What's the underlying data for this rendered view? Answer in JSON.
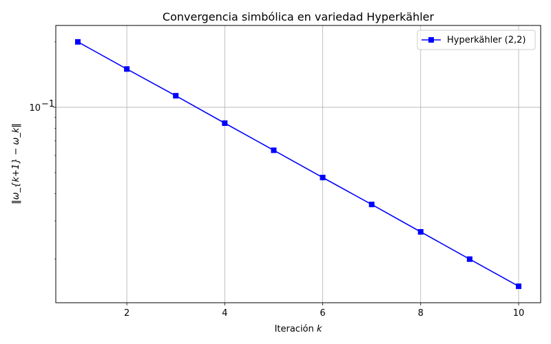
{
  "chart_data": {
    "type": "line",
    "title": "Convergencia simbólica en variedad Hyperkähler",
    "xlabel_prefix": "Iteración ",
    "xlabel_var": "k",
    "ylabel": "‖ω_{k+1} − ω_k‖",
    "x": [
      1,
      2,
      3,
      4,
      5,
      6,
      7,
      8,
      9,
      10
    ],
    "series": [
      {
        "name": "Hyperkähler (2,2)",
        "color": "#0000ff",
        "marker": "square",
        "values": [
          0.2,
          0.15,
          0.113,
          0.0845,
          0.0634,
          0.0475,
          0.0357,
          0.0267,
          0.02,
          0.015
        ]
      }
    ],
    "xlim": [
      0.55,
      10.45
    ],
    "ylim": [
      0.0126,
      0.238
    ],
    "yscale": "log",
    "xticks": [
      2,
      4,
      6,
      8,
      10
    ],
    "yticks": [
      {
        "value": 0.1,
        "base": "10",
        "exp": "−1"
      }
    ],
    "grid": true,
    "legend_position": "upper right"
  }
}
